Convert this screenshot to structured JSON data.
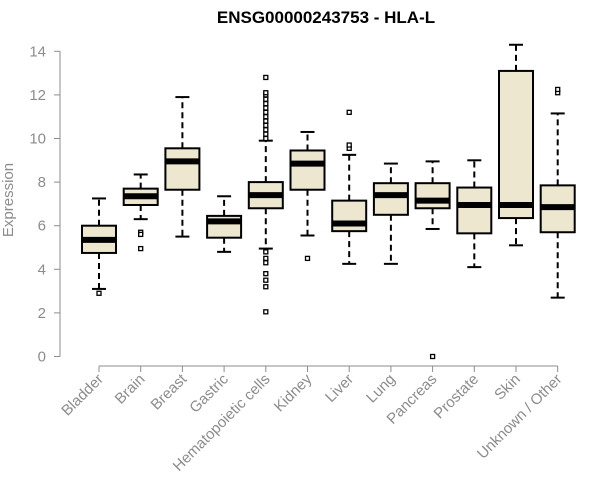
{
  "chart_data": {
    "type": "boxplot",
    "title": "ENSG00000243753 - HLA-L",
    "xlabel": "",
    "ylabel": "Expression",
    "ylim": [
      0,
      14
    ],
    "yticks": [
      0,
      2,
      4,
      6,
      8,
      10,
      12,
      14
    ],
    "grid": false,
    "legend": "none",
    "box_fill": "#ede7d0",
    "categories": [
      "Bladder",
      "Brain",
      "Breast",
      "Gastric",
      "Hematopoietic cells",
      "Kidney",
      "Liver",
      "Lung",
      "Pancreas",
      "Prostate",
      "Skin",
      "Unknown / Other"
    ],
    "boxes": [
      {
        "label": "Bladder",
        "whisker_low": 3.1,
        "q1": 4.75,
        "median": 5.35,
        "q3": 6.0,
        "whisker_high": 7.25,
        "outliers": [
          2.9
        ]
      },
      {
        "label": "Brain",
        "whisker_low": 6.3,
        "q1": 6.95,
        "median": 7.35,
        "q3": 7.7,
        "whisker_high": 8.35,
        "outliers": [
          5.7,
          5.6,
          4.95
        ]
      },
      {
        "label": "Breast",
        "whisker_low": 5.5,
        "q1": 7.65,
        "median": 8.95,
        "q3": 9.55,
        "whisker_high": 11.9,
        "outliers": []
      },
      {
        "label": "Gastric",
        "whisker_low": 4.8,
        "q1": 5.45,
        "median": 6.2,
        "q3": 6.45,
        "whisker_high": 7.35,
        "outliers": []
      },
      {
        "label": "Hematopoietic cells",
        "whisker_low": 4.95,
        "q1": 6.8,
        "median": 7.4,
        "q3": 8.0,
        "whisker_high": 9.9,
        "outliers": [
          10.0,
          10.2,
          10.4,
          10.6,
          10.8,
          11.0,
          11.2,
          11.4,
          11.6,
          11.8,
          12.0,
          12.1,
          12.8,
          4.8,
          4.5,
          4.3,
          3.8,
          3.5,
          3.2,
          2.05
        ]
      },
      {
        "label": "Kidney",
        "whisker_low": 5.55,
        "q1": 7.65,
        "median": 8.85,
        "q3": 9.45,
        "whisker_high": 10.3,
        "outliers": [
          4.5
        ]
      },
      {
        "label": "Liver",
        "whisker_low": 4.25,
        "q1": 5.75,
        "median": 6.1,
        "q3": 7.15,
        "whisker_high": 9.25,
        "outliers": [
          9.55,
          9.7,
          11.2
        ]
      },
      {
        "label": "Lung",
        "whisker_low": 4.25,
        "q1": 6.5,
        "median": 7.4,
        "q3": 7.95,
        "whisker_high": 8.85,
        "outliers": []
      },
      {
        "label": "Pancreas",
        "whisker_low": 5.85,
        "q1": 6.8,
        "median": 7.15,
        "q3": 7.95,
        "whisker_high": 8.95,
        "outliers": [
          0.0
        ]
      },
      {
        "label": "Prostate",
        "whisker_low": 4.1,
        "q1": 5.65,
        "median": 6.95,
        "q3": 7.75,
        "whisker_high": 9.0,
        "outliers": []
      },
      {
        "label": "Skin",
        "whisker_low": 5.1,
        "q1": 6.35,
        "median": 6.95,
        "q3": 13.1,
        "whisker_high": 14.3,
        "outliers": []
      },
      {
        "label": "Unknown / Other",
        "whisker_low": 2.7,
        "q1": 5.7,
        "median": 6.85,
        "q3": 7.85,
        "whisker_high": 11.15,
        "outliers": [
          12.1,
          12.25
        ]
      }
    ]
  }
}
